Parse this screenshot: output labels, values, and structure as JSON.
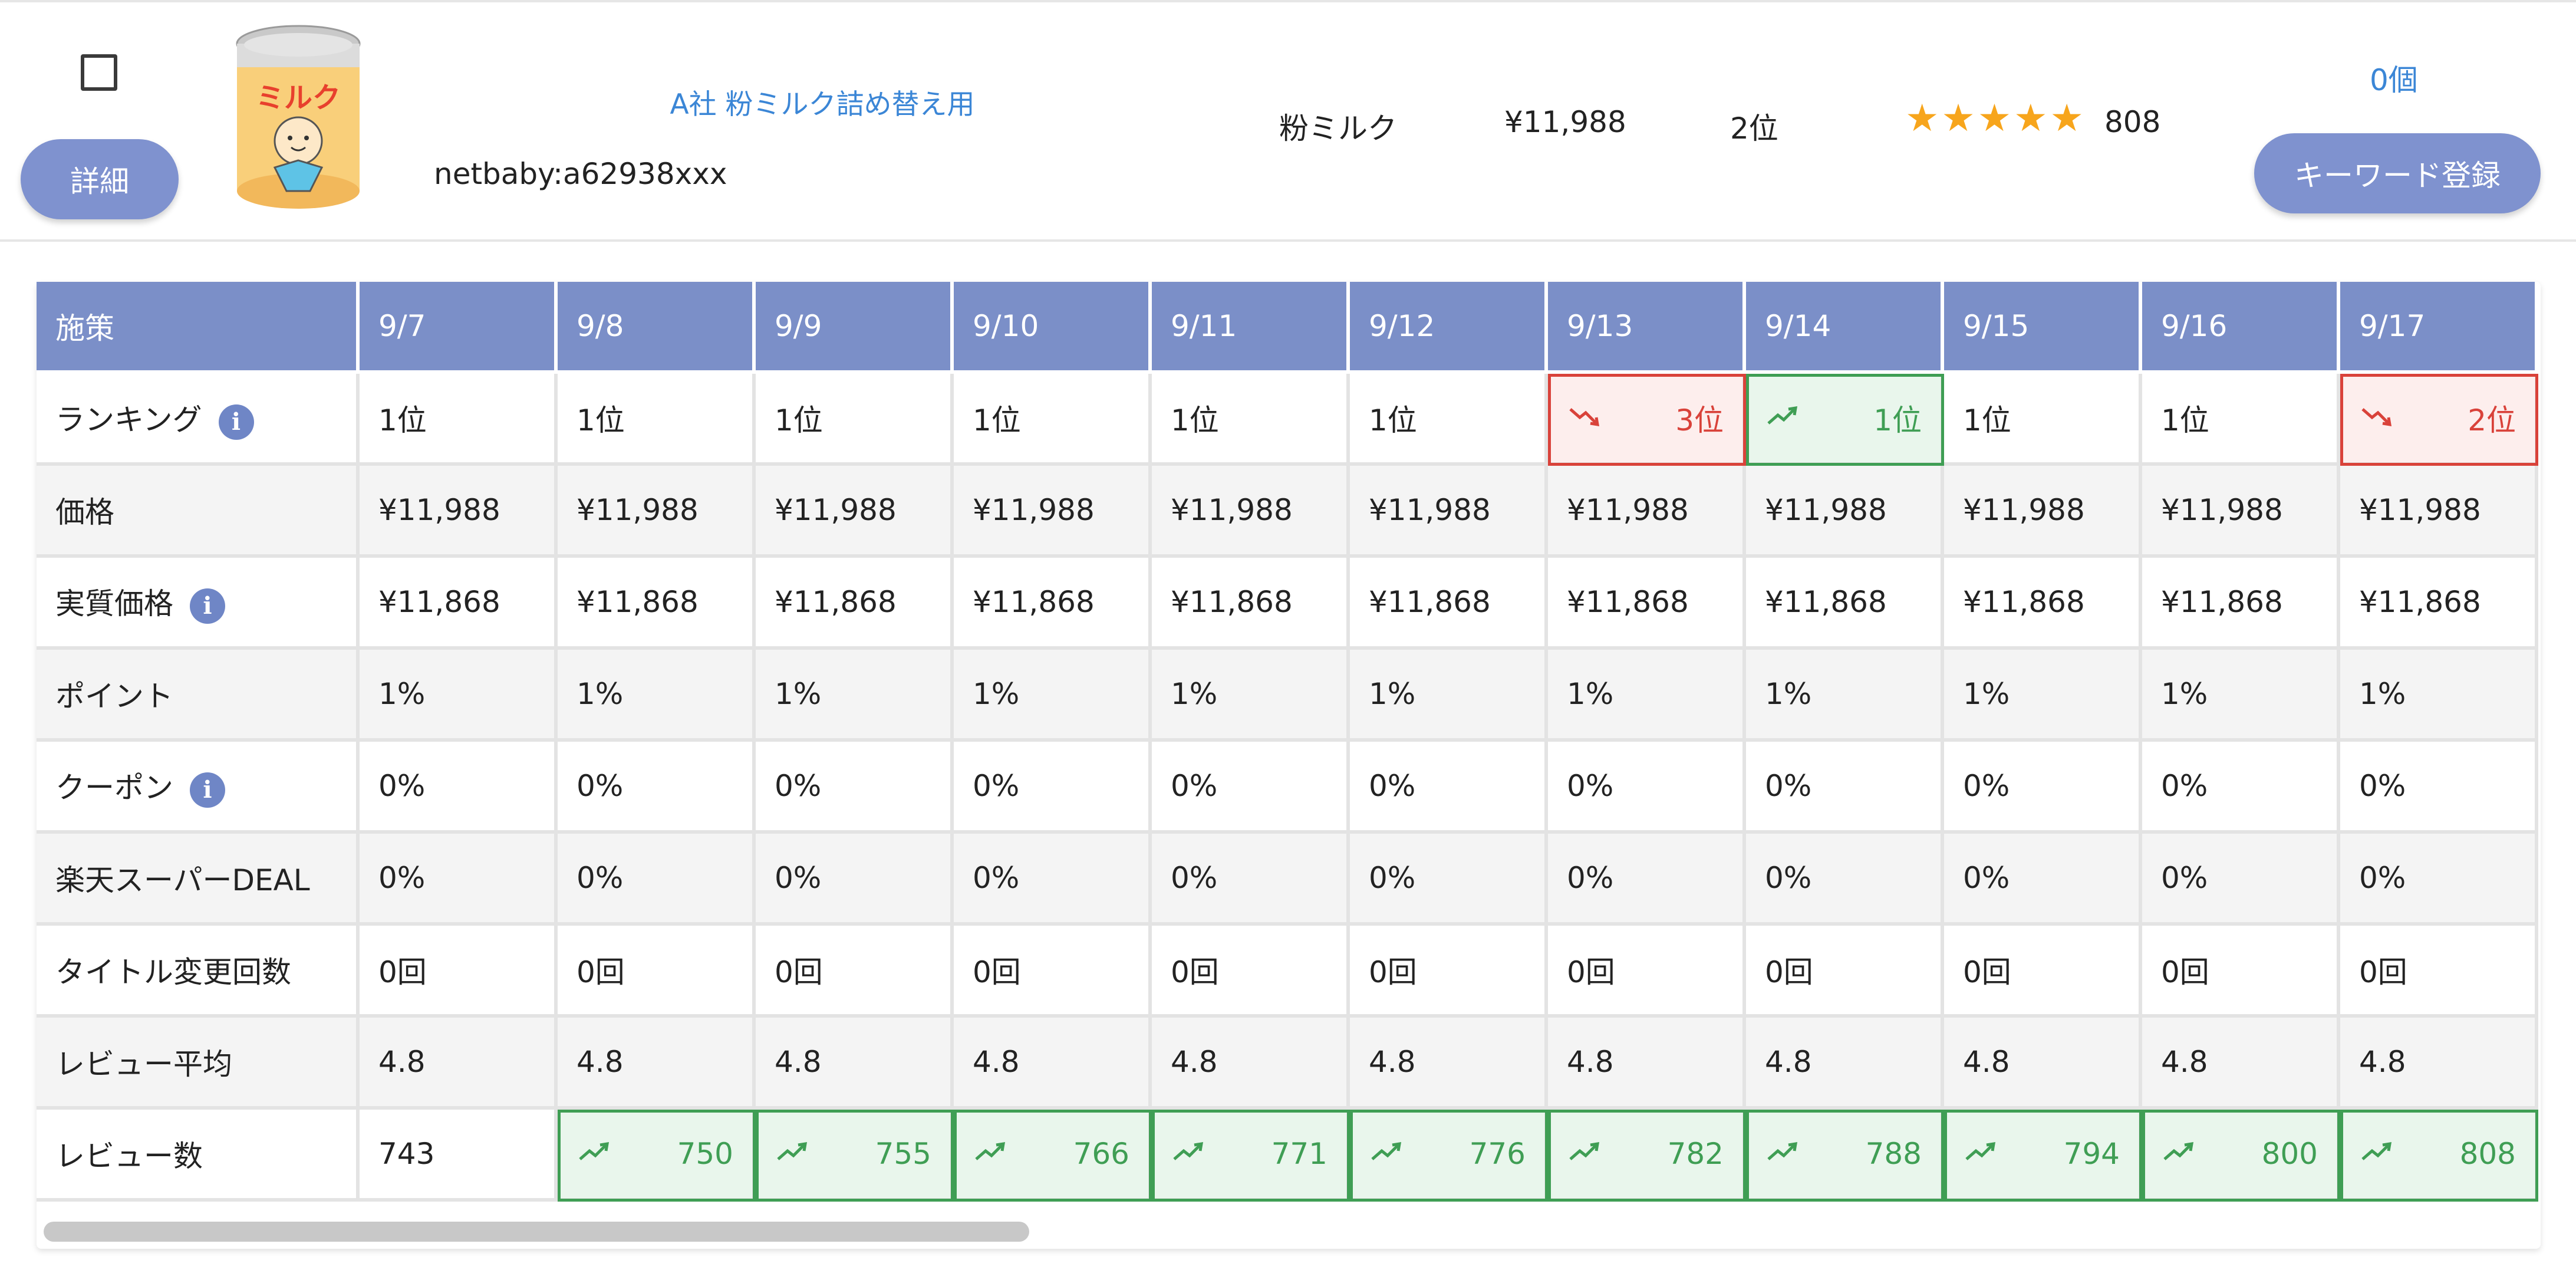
{
  "product": {
    "name": "A社 粉ミルク詰め替え用",
    "shop_id": "netbaby:a62938xxx",
    "category": "粉ミルク",
    "price": "¥11,988",
    "rank": "2位",
    "rating": 5,
    "stars": "★★★★★",
    "review_count": "808",
    "stock": "0個",
    "detail_label": "詳細",
    "keyword_label": "キーワード登録",
    "image_label": "ミルク"
  },
  "colors": {
    "accent": "#7b8fc8",
    "up": "#3f9e54",
    "down": "#d9423a",
    "star": "#f7a51c",
    "link": "#3b86d6"
  },
  "table": {
    "header_label": "施策",
    "dates": [
      "9/7",
      "9/8",
      "9/9",
      "9/10",
      "9/11",
      "9/12",
      "9/13",
      "9/14",
      "9/15",
      "9/16",
      "9/17"
    ],
    "rows": [
      {
        "label": "ランキング",
        "info": true,
        "cells": [
          {
            "v": "1位"
          },
          {
            "v": "1位"
          },
          {
            "v": "1位"
          },
          {
            "v": "1位"
          },
          {
            "v": "1位"
          },
          {
            "v": "1位"
          },
          {
            "v": "3位",
            "trend": "down"
          },
          {
            "v": "1位",
            "trend": "up"
          },
          {
            "v": "1位"
          },
          {
            "v": "1位"
          },
          {
            "v": "2位",
            "trend": "down"
          }
        ]
      },
      {
        "label": "価格",
        "info": false,
        "cells": [
          {
            "v": "¥11,988"
          },
          {
            "v": "¥11,988"
          },
          {
            "v": "¥11,988"
          },
          {
            "v": "¥11,988"
          },
          {
            "v": "¥11,988"
          },
          {
            "v": "¥11,988"
          },
          {
            "v": "¥11,988"
          },
          {
            "v": "¥11,988"
          },
          {
            "v": "¥11,988"
          },
          {
            "v": "¥11,988"
          },
          {
            "v": "¥11,988"
          }
        ]
      },
      {
        "label": "実質価格",
        "info": true,
        "cells": [
          {
            "v": "¥11,868"
          },
          {
            "v": "¥11,868"
          },
          {
            "v": "¥11,868"
          },
          {
            "v": "¥11,868"
          },
          {
            "v": "¥11,868"
          },
          {
            "v": "¥11,868"
          },
          {
            "v": "¥11,868"
          },
          {
            "v": "¥11,868"
          },
          {
            "v": "¥11,868"
          },
          {
            "v": "¥11,868"
          },
          {
            "v": "¥11,868"
          }
        ]
      },
      {
        "label": "ポイント",
        "info": false,
        "cells": [
          {
            "v": "1%"
          },
          {
            "v": "1%"
          },
          {
            "v": "1%"
          },
          {
            "v": "1%"
          },
          {
            "v": "1%"
          },
          {
            "v": "1%"
          },
          {
            "v": "1%"
          },
          {
            "v": "1%"
          },
          {
            "v": "1%"
          },
          {
            "v": "1%"
          },
          {
            "v": "1%"
          }
        ]
      },
      {
        "label": "クーポン",
        "info": true,
        "cells": [
          {
            "v": "0%"
          },
          {
            "v": "0%"
          },
          {
            "v": "0%"
          },
          {
            "v": "0%"
          },
          {
            "v": "0%"
          },
          {
            "v": "0%"
          },
          {
            "v": "0%"
          },
          {
            "v": "0%"
          },
          {
            "v": "0%"
          },
          {
            "v": "0%"
          },
          {
            "v": "0%"
          }
        ]
      },
      {
        "label": "楽天スーパーDEAL",
        "info": false,
        "cells": [
          {
            "v": "0%"
          },
          {
            "v": "0%"
          },
          {
            "v": "0%"
          },
          {
            "v": "0%"
          },
          {
            "v": "0%"
          },
          {
            "v": "0%"
          },
          {
            "v": "0%"
          },
          {
            "v": "0%"
          },
          {
            "v": "0%"
          },
          {
            "v": "0%"
          },
          {
            "v": "0%"
          }
        ]
      },
      {
        "label": "タイトル変更回数",
        "info": false,
        "cells": [
          {
            "v": "0回"
          },
          {
            "v": "0回"
          },
          {
            "v": "0回"
          },
          {
            "v": "0回"
          },
          {
            "v": "0回"
          },
          {
            "v": "0回"
          },
          {
            "v": "0回"
          },
          {
            "v": "0回"
          },
          {
            "v": "0回"
          },
          {
            "v": "0回"
          },
          {
            "v": "0回"
          }
        ]
      },
      {
        "label": "レビュー平均",
        "info": false,
        "cells": [
          {
            "v": "4.8"
          },
          {
            "v": "4.8"
          },
          {
            "v": "4.8"
          },
          {
            "v": "4.8"
          },
          {
            "v": "4.8"
          },
          {
            "v": "4.8"
          },
          {
            "v": "4.8"
          },
          {
            "v": "4.8"
          },
          {
            "v": "4.8"
          },
          {
            "v": "4.8"
          },
          {
            "v": "4.8"
          }
        ]
      },
      {
        "label": "レビュー数",
        "info": false,
        "cells": [
          {
            "v": "743"
          },
          {
            "v": "750",
            "trend": "up"
          },
          {
            "v": "755",
            "trend": "up"
          },
          {
            "v": "766",
            "trend": "up"
          },
          {
            "v": "771",
            "trend": "up"
          },
          {
            "v": "776",
            "trend": "up"
          },
          {
            "v": "782",
            "trend": "up"
          },
          {
            "v": "788",
            "trend": "up"
          },
          {
            "v": "794",
            "trend": "up"
          },
          {
            "v": "800",
            "trend": "up"
          },
          {
            "v": "808",
            "trend": "up"
          }
        ]
      }
    ]
  }
}
